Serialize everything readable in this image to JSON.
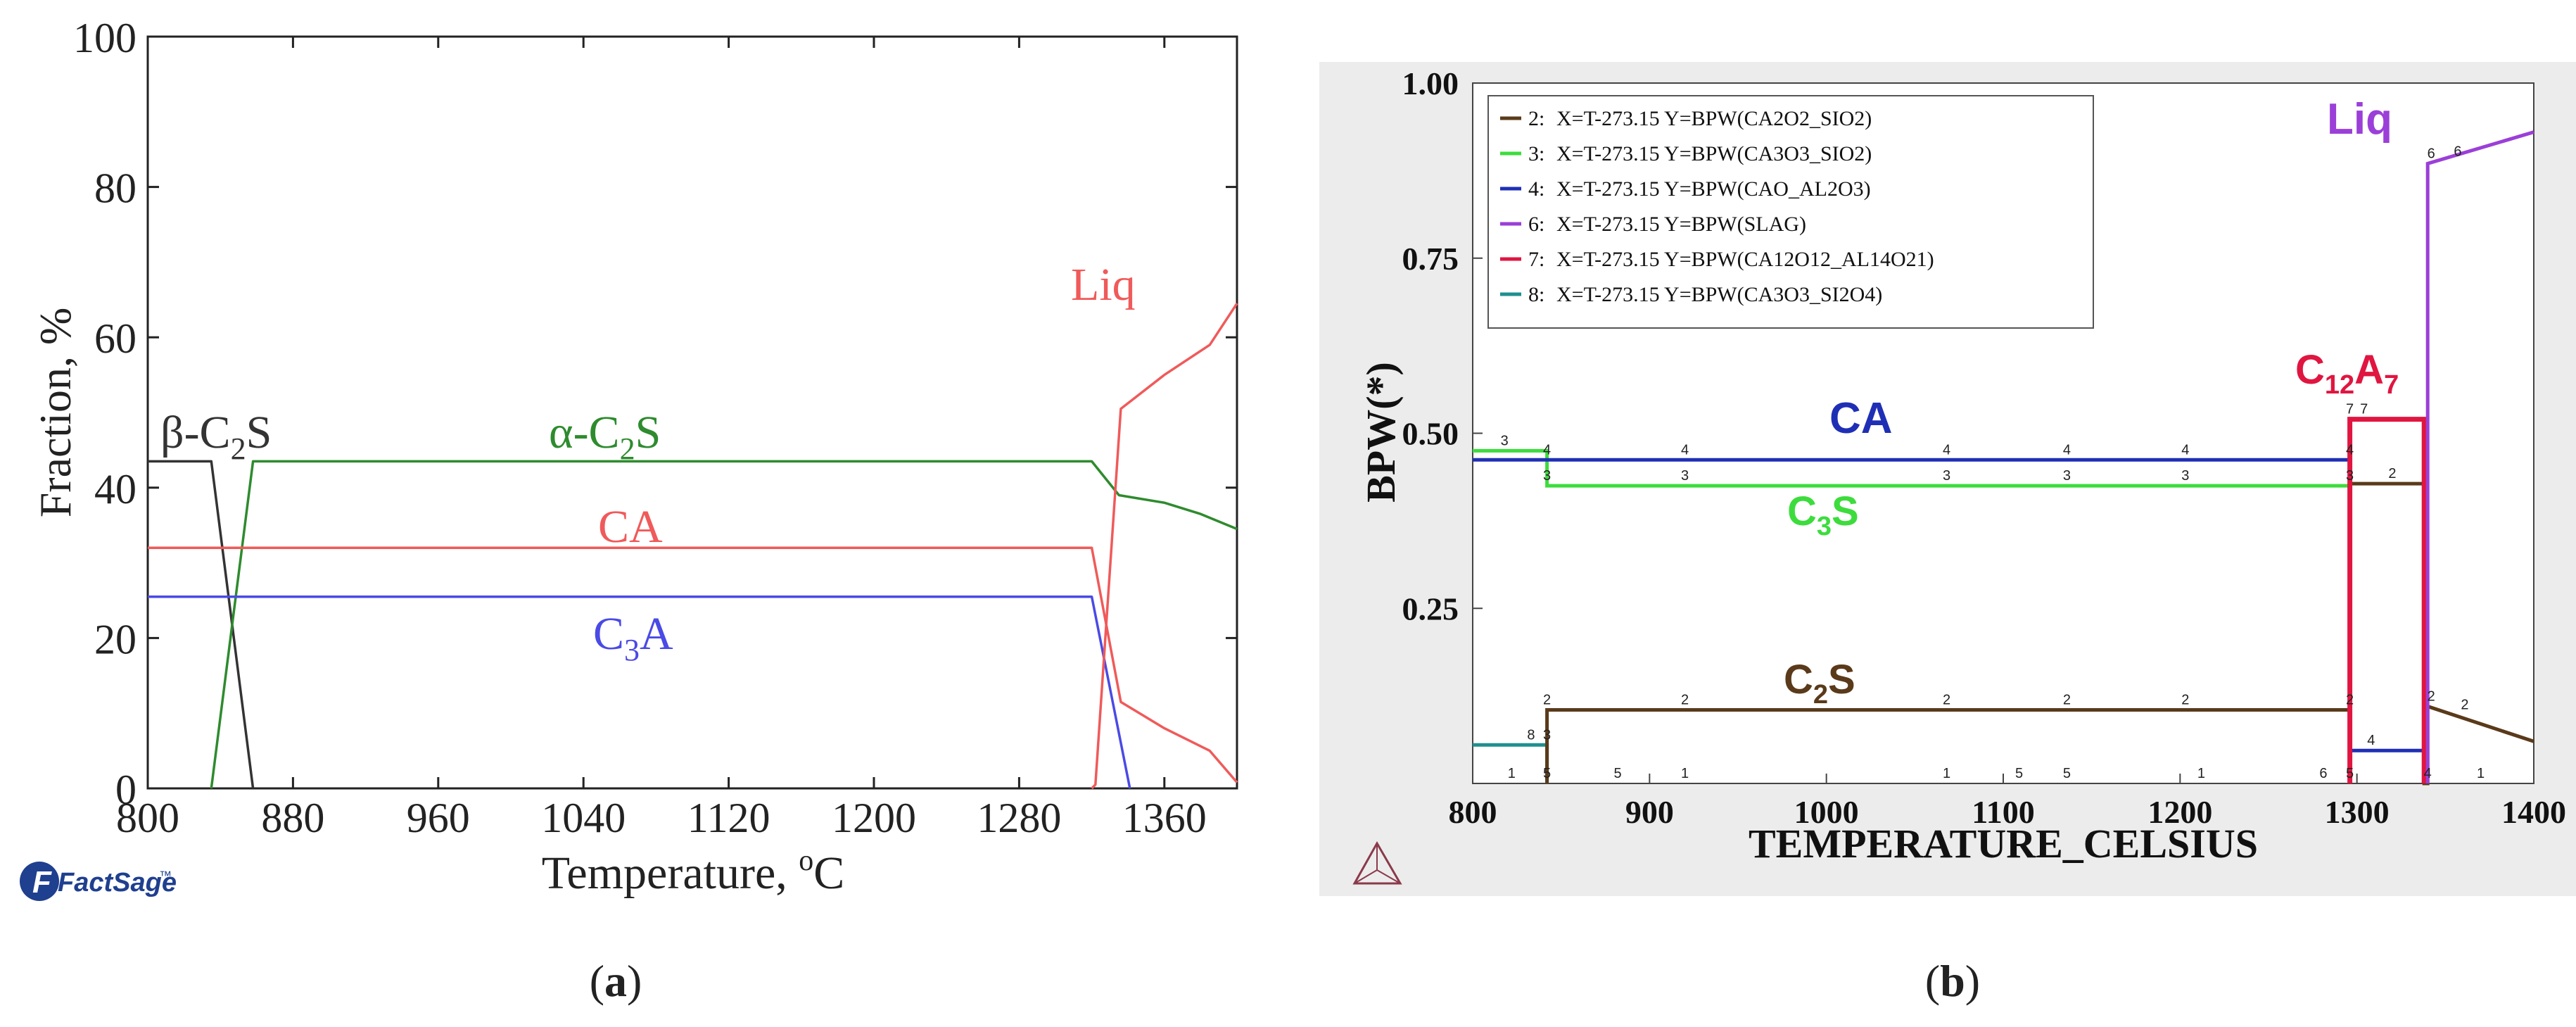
{
  "chart_data": [
    {
      "panel": "a",
      "type": "line",
      "caption_label": "a",
      "xlabel": "Temperature, ",
      "xlabel_unit_sup": "o",
      "xlabel_unit": "C",
      "ylabel": "Fraction, %",
      "xlim": [
        800,
        1400
      ],
      "ylim": [
        0,
        100
      ],
      "xticks": [
        800,
        880,
        960,
        1040,
        1120,
        1200,
        1280,
        1360
      ],
      "xtick_labels": [
        "800",
        "880",
        "960",
        "1040",
        "1120",
        "1200",
        "1280",
        "1360"
      ],
      "yticks": [
        0,
        20,
        40,
        60,
        80,
        100
      ],
      "ytick_labels": [
        "0",
        "20",
        "40",
        "60",
        "80",
        "100"
      ],
      "logo_text": "FactSage",
      "logo_tm": "™",
      "colors": {
        "black": "#333333",
        "green": "#2e8b2e",
        "red": "#f05a5a",
        "blue": "#4a4ae6"
      },
      "series": [
        {
          "name": "β-C2S",
          "color": "#333333",
          "x": [
            800,
            835,
            858
          ],
          "y": [
            43.5,
            43.5,
            0
          ]
        },
        {
          "name": "α-C2S",
          "color": "#2e8b2e",
          "x": [
            835,
            858,
            1320,
            1335,
            1360,
            1380,
            1400
          ],
          "y": [
            0,
            43.5,
            43.5,
            39,
            38,
            36.5,
            34.5
          ]
        },
        {
          "name": "CA",
          "color": "#f05a5a",
          "x": [
            800,
            1320,
            1336,
            1360,
            1385,
            1400
          ],
          "y": [
            32,
            32,
            11.5,
            8,
            5,
            0.8
          ]
        },
        {
          "name": "C3A",
          "color": "#4a4ae6",
          "x": [
            800,
            1320,
            1341
          ],
          "y": [
            25.5,
            25.5,
            0
          ]
        },
        {
          "name": "Liq",
          "color": "#f05a5a",
          "x": [
            1320,
            1322,
            1336,
            1360,
            1385,
            1400
          ],
          "y": [
            0,
            0.5,
            50.5,
            55,
            59,
            64.5
          ]
        }
      ],
      "annotations": [
        {
          "id": "beta",
          "prefix": "β-C",
          "sub": "2",
          "suffix": "S",
          "color": "#333333"
        },
        {
          "id": "alpha",
          "prefix": "α-C",
          "sub": "2",
          "suffix": "S",
          "color": "#2e8b2e"
        },
        {
          "id": "ca",
          "prefix": "CA",
          "sub": "",
          "suffix": "",
          "color": "#f05a5a"
        },
        {
          "id": "c3a",
          "prefix": "C",
          "sub": "3",
          "suffix": "A",
          "color": "#4a4ae6"
        },
        {
          "id": "liq",
          "prefix": "Liq",
          "sub": "",
          "suffix": "",
          "color": "#f05a5a"
        }
      ]
    },
    {
      "panel": "b",
      "type": "line",
      "caption_label": "b",
      "xlabel": "TEMPERATURE_CELSIUS",
      "ylabel": "BPW(*)",
      "xlim": [
        800,
        1400
      ],
      "ylim": [
        0,
        1.0
      ],
      "xticks": [
        800,
        900,
        1000,
        1100,
        1200,
        1300,
        1400
      ],
      "xtick_labels": [
        "800",
        "900",
        "1000",
        "1100",
        "1200",
        "1300",
        "1400"
      ],
      "yticks": [
        0.25,
        0.5,
        0.75,
        1.0
      ],
      "ytick_labels": [
        "0.25",
        "0.50",
        "0.75",
        "1.00"
      ],
      "colors": {
        "c2s": "#5a3a1a",
        "c3s": "#3ddc3d",
        "ca": "#1f2fb5",
        "slag": "#9b3fd8",
        "c12a7": "#e01540",
        "c3s2o4": "#1f8f8f"
      },
      "legend": [
        {
          "num": "2:",
          "text": "X=T-273.15  Y=BPW(CA2O2_SIO2)",
          "color": "#5a3a1a"
        },
        {
          "num": "3:",
          "text": "X=T-273.15  Y=BPW(CA3O3_SIO2)",
          "color": "#3ddc3d"
        },
        {
          "num": "4:",
          "text": "X=T-273.15  Y=BPW(CAO_AL2O3)",
          "color": "#1f2fb5"
        },
        {
          "num": "6:",
          "text": "X=T-273.15  Y=BPW(SLAG)",
          "color": "#9b3fd8"
        },
        {
          "num": "7:",
          "text": "X=T-273.15  Y=BPW(CA12O12_AL14O21)",
          "color": "#e01540"
        },
        {
          "num": "8:",
          "text": "X=T-273.15  Y=BPW(CA3O3_SI2O4)",
          "color": "#1f8f8f"
        }
      ],
      "series": [
        {
          "id": "8",
          "name": "CA3O3_SI2O4",
          "color": "#1f8f8f",
          "x": [
            800,
            842,
            842
          ],
          "y": [
            0.055,
            0.055,
            0
          ]
        },
        {
          "id": "3",
          "name": "CA3O3_SIO2",
          "color": "#3ddc3d",
          "x": [
            800,
            842,
            842,
            1296,
            1296,
            1296,
            1296
          ],
          "y": [
            0.475,
            0.475,
            0.425,
            0.425,
            0.425,
            0,
            0
          ]
        },
        {
          "id": "4",
          "name": "CAO_AL2O3",
          "color": "#1f2fb5",
          "x": [
            800,
            842,
            1296,
            1296,
            1296,
            1338,
            1338
          ],
          "y": [
            0.462,
            0.462,
            0.462,
            0,
            0.047,
            0.047,
            0
          ]
        },
        {
          "id": "2",
          "name": "CA2O2_SIO2",
          "color": "#5a3a1a",
          "x": [
            842,
            842,
            1296,
            1296,
            1338,
            1338,
            1340,
            1340,
            1400
          ],
          "y": [
            0,
            0.105,
            0.105,
            0.428,
            0.428,
            0,
            0,
            0.11,
            0.06
          ]
        },
        {
          "id": "7",
          "name": "CA12O12_AL14O21",
          "color": "#e01540",
          "x": [
            1296,
            1296,
            1338,
            1338
          ],
          "y": [
            0,
            0.52,
            0.52,
            0
          ]
        },
        {
          "id": "6",
          "name": "SLAG",
          "color": "#9b3fd8",
          "x": [
            1340,
            1340,
            1400
          ],
          "y": [
            0,
            0.885,
            0.93
          ]
        }
      ],
      "marker_labels": [
        {
          "t": "3",
          "x": 818,
          "y": 0.475
        },
        {
          "t": "4",
          "x": 842,
          "y": 0.462
        },
        {
          "t": "3",
          "x": 842,
          "y": 0.425
        },
        {
          "t": "4",
          "x": 920,
          "y": 0.462
        },
        {
          "t": "3",
          "x": 920,
          "y": 0.425
        },
        {
          "t": "4",
          "x": 1068,
          "y": 0.462
        },
        {
          "t": "3",
          "x": 1068,
          "y": 0.425
        },
        {
          "t": "4",
          "x": 1136,
          "y": 0.462
        },
        {
          "t": "3",
          "x": 1136,
          "y": 0.425
        },
        {
          "t": "4",
          "x": 1203,
          "y": 0.462
        },
        {
          "t": "3",
          "x": 1203,
          "y": 0.425
        },
        {
          "t": "4",
          "x": 1296,
          "y": 0.462
        },
        {
          "t": "3",
          "x": 1296,
          "y": 0.425
        },
        {
          "t": "2",
          "x": 1320,
          "y": 0.428
        },
        {
          "t": "7",
          "x": 1296,
          "y": 0.52
        },
        {
          "t": "7",
          "x": 1304,
          "y": 0.52
        },
        {
          "t": "2",
          "x": 842,
          "y": 0.105
        },
        {
          "t": "2",
          "x": 920,
          "y": 0.105
        },
        {
          "t": "2",
          "x": 1068,
          "y": 0.105
        },
        {
          "t": "2",
          "x": 1136,
          "y": 0.105
        },
        {
          "t": "2",
          "x": 1203,
          "y": 0.105
        },
        {
          "t": "2",
          "x": 1296,
          "y": 0.105
        },
        {
          "t": "8",
          "x": 833,
          "y": 0.055
        },
        {
          "t": "3",
          "x": 842,
          "y": 0.055
        },
        {
          "t": "4",
          "x": 1308,
          "y": 0.047
        },
        {
          "t": "2",
          "x": 1342,
          "y": 0.11
        },
        {
          "t": "2",
          "x": 1361,
          "y": 0.098
        },
        {
          "t": "6",
          "x": 1342,
          "y": 0.885
        },
        {
          "t": "6",
          "x": 1357,
          "y": 0.888
        },
        {
          "t": "1",
          "x": 822,
          "y": 0
        },
        {
          "t": "5",
          "x": 842,
          "y": 0
        },
        {
          "t": "5",
          "x": 882,
          "y": 0
        },
        {
          "t": "1",
          "x": 920,
          "y": 0
        },
        {
          "t": "1",
          "x": 1068,
          "y": 0
        },
        {
          "t": "5",
          "x": 1109,
          "y": 0
        },
        {
          "t": "5",
          "x": 1136,
          "y": 0
        },
        {
          "t": "1",
          "x": 1212,
          "y": 0
        },
        {
          "t": "6",
          "x": 1281,
          "y": 0
        },
        {
          "t": "5",
          "x": 1296,
          "y": 0
        },
        {
          "t": "4",
          "x": 1340,
          "y": 0
        },
        {
          "t": "1",
          "x": 1370,
          "y": 0
        }
      ],
      "annotations": [
        {
          "id": "liq",
          "prefix": "Liq",
          "sub": "",
          "mid": "",
          "sub2": "",
          "color": "#9b3fd8"
        },
        {
          "id": "c12a7",
          "prefix": "C",
          "sub": "12",
          "mid": "A",
          "sub2": "7",
          "color": "#e01540"
        },
        {
          "id": "ca",
          "prefix": "CA",
          "sub": "",
          "mid": "",
          "sub2": "",
          "color": "#1f2fb5"
        },
        {
          "id": "c3s",
          "prefix": "C",
          "sub": "3",
          "mid": "S",
          "sub2": "",
          "color": "#3ddc3d"
        },
        {
          "id": "c2s",
          "prefix": "C",
          "sub": "2",
          "mid": "S",
          "sub2": "",
          "color": "#5a3a1a"
        }
      ]
    }
  ]
}
